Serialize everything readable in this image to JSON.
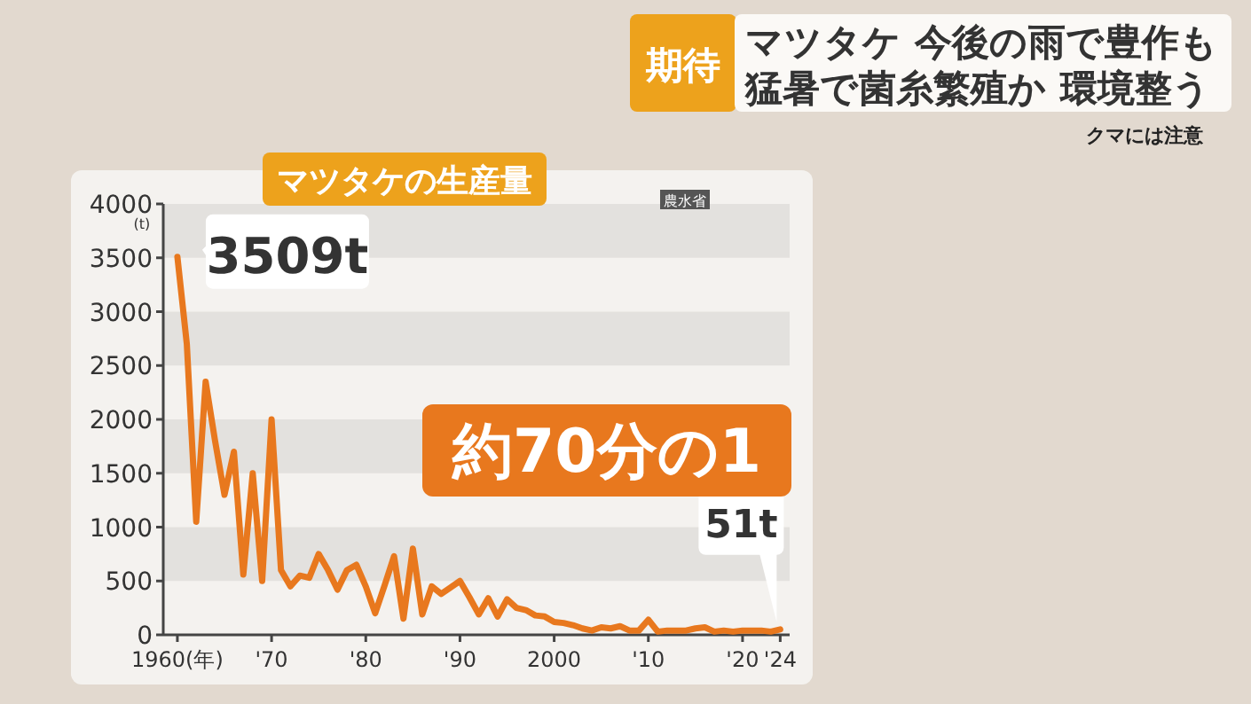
{
  "chart_data": {
    "type": "line",
    "title": "マツタケの生産量",
    "ylabel": "(t)",
    "x": [
      1960,
      1961,
      1962,
      1963,
      1964,
      1965,
      1966,
      1967,
      1968,
      1969,
      1970,
      1971,
      1972,
      1973,
      1974,
      1975,
      1976,
      1977,
      1978,
      1979,
      1980,
      1981,
      1982,
      1983,
      1984,
      1985,
      1986,
      1987,
      1988,
      1989,
      1990,
      1991,
      1992,
      1993,
      1994,
      1995,
      1996,
      1997,
      1998,
      1999,
      2000,
      2001,
      2002,
      2003,
      2004,
      2005,
      2006,
      2007,
      2008,
      2009,
      2010,
      2011,
      2012,
      2013,
      2014,
      2015,
      2016,
      2017,
      2018,
      2019,
      2020,
      2021,
      2022,
      2023,
      2024
    ],
    "values": [
      3509,
      2700,
      1050,
      2350,
      1800,
      1300,
      1700,
      560,
      1500,
      500,
      2000,
      600,
      450,
      550,
      530,
      750,
      600,
      420,
      600,
      650,
      450,
      200,
      460,
      730,
      150,
      800,
      190,
      450,
      380,
      440,
      500,
      350,
      190,
      340,
      170,
      330,
      250,
      230,
      180,
      170,
      120,
      110,
      90,
      60,
      40,
      70,
      60,
      80,
      40,
      40,
      140,
      30,
      40,
      40,
      40,
      60,
      70,
      30,
      40,
      30,
      40,
      40,
      40,
      30,
      51
    ],
    "color": "#e8781e",
    "line_style": "solid",
    "xlim": [
      1958.5,
      2025
    ],
    "ylim": [
      0,
      4000
    ],
    "xticks": [
      {
        "value": 1960,
        "label": "1960(年)"
      },
      {
        "value": 1970,
        "label": "'70"
      },
      {
        "value": 1980,
        "label": "'80"
      },
      {
        "value": 1990,
        "label": "'90"
      },
      2000,
      {
        "value": 2010,
        "label": "'10"
      },
      {
        "value": 2020,
        "label": "'20"
      },
      {
        "value": 2024,
        "label": "'24"
      }
    ],
    "yticks": [
      0,
      500,
      1000,
      1500,
      2000,
      2500,
      3000,
      3500,
      4000
    ],
    "bands": [
      {
        "axis": "y",
        "from": 500,
        "to": 1000,
        "color": "#e3e1de"
      },
      {
        "axis": "y",
        "from": 1500,
        "to": 2000,
        "color": "#e3e1de"
      },
      {
        "axis": "y",
        "from": 2500,
        "to": 3000,
        "color": "#e3e1de"
      },
      {
        "axis": "y",
        "from": 3500,
        "to": 4000,
        "color": "#e3e1de"
      }
    ],
    "annotations": [
      {
        "text": "3509t",
        "x": 1960,
        "y": 3509
      },
      {
        "text": "51t",
        "x": 2024,
        "y": 51
      },
      "約70分の1",
      "農水省",
      "期待",
      "マツタケ 今後の雨で豊作も",
      "猛暑で菌糸繁殖か 環境整う",
      "クマには注意"
    ]
  }
}
